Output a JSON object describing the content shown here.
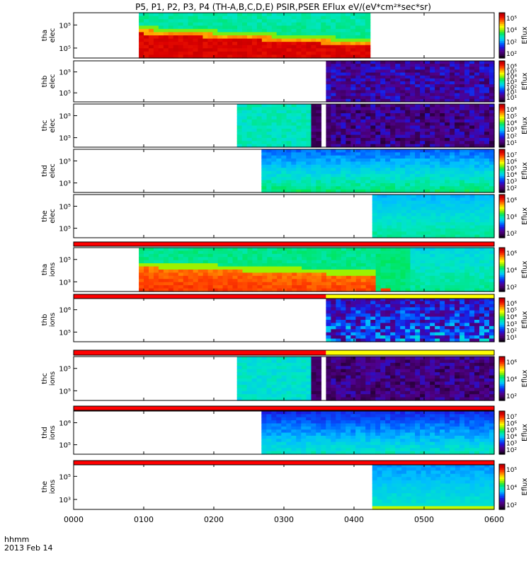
{
  "chart_data": {
    "type": "heatmap",
    "title": "P5, P1, P2, P3, P4 (TH-A,B,C,D,E) PSIR,PSER EFlux eV/(eV*cm²*sec*sr)",
    "x_ticks": [
      "0000",
      "0100",
      "0200",
      "0300",
      "0400",
      "0500",
      "0600"
    ],
    "x_range": [
      0,
      600
    ],
    "x_label_unit": "hhmm",
    "x_label_date": "2013 Feb 14",
    "colorbar_label": "Eflux",
    "panels": [
      {
        "label_line1": "tha",
        "label_line2": "elec",
        "y_ticks": [
          "10⁵",
          "10⁵"
        ],
        "colorbar_ticks": [
          "10⁵",
          "10⁴",
          "10²",
          "10²"
        ],
        "data_start": 93,
        "data_end": 423,
        "pattern": "tha_elec"
      },
      {
        "label_line1": "thb",
        "label_line2": "elec",
        "y_ticks": [
          "10⁵",
          "10⁵"
        ],
        "colorbar_ticks": [
          "10⁶",
          "10⁵",
          "10⁴",
          "10³",
          "10²",
          "10¹",
          "10¹"
        ],
        "data_start": 360,
        "data_end": 600,
        "pattern": "noise"
      },
      {
        "label_line1": "thc",
        "label_line2": "elec",
        "y_ticks": [
          "10⁵",
          "10⁵"
        ],
        "colorbar_ticks": [
          "10⁶",
          "10⁵",
          "10⁴",
          "10³",
          "10²",
          "10¹"
        ],
        "data_start": 233,
        "data_end": 600,
        "gap_start": 342,
        "gap_end": 365,
        "pattern": "thc"
      },
      {
        "label_line1": "thd",
        "label_line2": "elec",
        "y_ticks": [
          "10⁵",
          "10³"
        ],
        "colorbar_ticks": [
          "10⁷",
          "10⁶",
          "10⁵",
          "10⁴",
          "10³",
          "10²"
        ],
        "data_start": 268,
        "data_end": 600,
        "pattern": "thd"
      },
      {
        "label_line1": "the",
        "label_line2": "elec",
        "y_ticks": [
          "10⁵",
          "10⁵"
        ],
        "colorbar_ticks": [
          "10⁶",
          "10⁴",
          "10²"
        ],
        "data_start": 426,
        "data_end": 600,
        "pattern": "the"
      },
      {
        "label_line1": "tha",
        "label_line2": "ions",
        "y_ticks": [
          "10⁵",
          "10³"
        ],
        "colorbar_ticks": [
          "10⁶",
          "10⁴",
          "10²"
        ],
        "data_start": 93,
        "data_end": 600,
        "pattern": "tha_ions"
      },
      {
        "label_line1": "thb",
        "label_line2": "ions",
        "y_ticks": [
          "10⁶",
          "10⁵"
        ],
        "colorbar_ticks": [
          "10⁶",
          "10⁵",
          "10⁴",
          "10³",
          "10²",
          "10¹"
        ],
        "data_start": 360,
        "data_end": 600,
        "pattern": "noise_ions"
      },
      {
        "label_line1": "thc",
        "label_line2": "ions",
        "y_ticks": [
          "10⁵",
          "10⁵"
        ],
        "colorbar_ticks": [
          "10⁶",
          "10⁴",
          "10²"
        ],
        "data_start": 233,
        "data_end": 600,
        "gap_start": 342,
        "gap_end": 365,
        "pattern": "thc_ions"
      },
      {
        "label_line1": "thd",
        "label_line2": "ions",
        "y_ticks": [
          "10⁶",
          "10⁵"
        ],
        "colorbar_ticks": [
          "10⁷",
          "10⁶",
          "10⁵",
          "10⁴",
          "10³",
          "10²"
        ],
        "data_start": 268,
        "data_end": 600,
        "pattern": "thd_ions"
      },
      {
        "label_line1": "the",
        "label_line2": "ions",
        "y_ticks": [
          "10⁵",
          "10³"
        ],
        "colorbar_ticks": [
          "10⁵",
          "10⁴",
          "10²"
        ],
        "data_start": 426,
        "data_end": 600,
        "pattern": "the_ions"
      }
    ],
    "mode_bars": [
      {
        "segments": [
          {
            "start": 0,
            "end": 600,
            "color": "#ff0000"
          }
        ]
      },
      {
        "segments": [
          {
            "start": 0,
            "end": 360,
            "color": "#ff0000"
          },
          {
            "start": 360,
            "end": 600,
            "color": "#ffff00"
          }
        ]
      },
      {
        "segments": [
          {
            "start": 0,
            "end": 360,
            "color": "#ff0000"
          },
          {
            "start": 360,
            "end": 600,
            "color": "#ffff00"
          }
        ]
      },
      {
        "segments": [
          {
            "start": 0,
            "end": 600,
            "color": "#ff0000"
          }
        ]
      },
      {
        "segments": [
          {
            "start": 0,
            "end": 600,
            "color": "#ff0000"
          }
        ]
      }
    ]
  }
}
